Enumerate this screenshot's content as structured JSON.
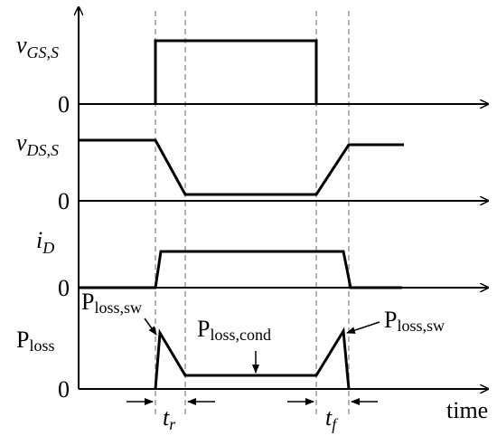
{
  "labels": {
    "vgs": {
      "main": "v",
      "sub": "GS,S"
    },
    "vds": {
      "main": "v",
      "sub": "DS,S"
    },
    "id": {
      "main": "i",
      "sub": "D"
    },
    "ploss": {
      "main": "P",
      "sub": "loss"
    },
    "zeros": [
      "0",
      "0",
      "0",
      "0"
    ],
    "ploss_sw_left": {
      "main": "P",
      "sub": "loss,sw"
    },
    "ploss_cond": {
      "main": "P",
      "sub": "loss,cond"
    },
    "ploss_sw_right": {
      "main": "P",
      "sub": "loss,sw"
    },
    "tr": {
      "main": "t",
      "sub": "r"
    },
    "tf": {
      "main": "t",
      "sub": "f"
    },
    "time": "time"
  }
}
